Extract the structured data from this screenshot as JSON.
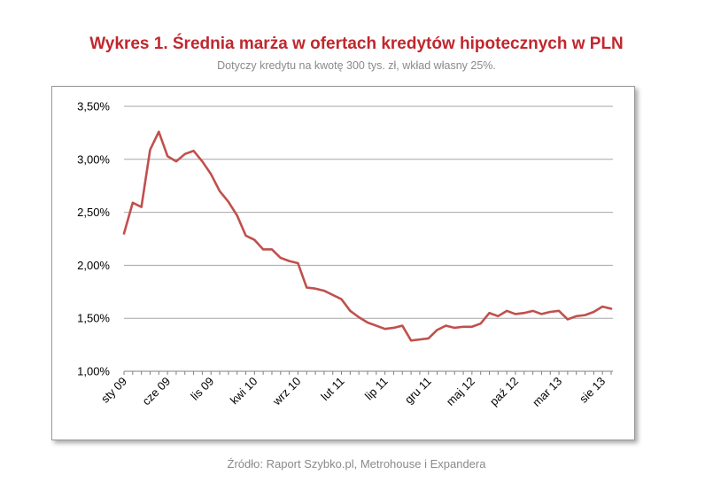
{
  "header": {
    "title": "Wykres 1. Średnia marża w ofertach kredytów hipotecznych w PLN",
    "subtitle": "Dotyczy kredytu na kwotę 300 tys. zł, wkład własny 25%."
  },
  "footer": {
    "source": "Źródło: Raport Szybko.pl, Metrohouse i Expandera"
  },
  "colors": {
    "line": "#c0504d",
    "grid": "#a6a6a6"
  },
  "chart_data": {
    "type": "line",
    "title": "Wykres 1. Średnia marża w ofertach kredytów hipotecznych w PLN",
    "subtitle": "Dotyczy kredytu na kwotę 300 tys. zł, wkład własny 25%.",
    "xlabel": "",
    "ylabel": "",
    "ylim": [
      1.0,
      3.5
    ],
    "yticks": [
      1.0,
      1.5,
      2.0,
      2.5,
      3.0,
      3.5
    ],
    "ytick_labels": [
      "1,00%",
      "1,50%",
      "2,00%",
      "2,50%",
      "3,00%",
      "3,50%"
    ],
    "x_tick_labels": [
      {
        "label": "sty 09",
        "index": 0
      },
      {
        "label": "cze 09",
        "index": 5
      },
      {
        "label": "lis 09",
        "index": 10
      },
      {
        "label": "kwi 10",
        "index": 15
      },
      {
        "label": "wrz 10",
        "index": 20
      },
      {
        "label": "lut 11",
        "index": 25
      },
      {
        "label": "lip 11",
        "index": 30
      },
      {
        "label": "gru 11",
        "index": 35
      },
      {
        "label": "maj 12",
        "index": 40
      },
      {
        "label": "paź 12",
        "index": 45
      },
      {
        "label": "mar 13",
        "index": 50
      },
      {
        "label": "sie 13",
        "index": 55
      }
    ],
    "grid": true,
    "series": [
      {
        "values": [
          2.3,
          2.59,
          2.55,
          3.09,
          3.26,
          3.03,
          2.98,
          3.05,
          3.08,
          2.98,
          2.86,
          2.7,
          2.6,
          2.47,
          2.28,
          2.24,
          2.15,
          2.15,
          2.07,
          2.04,
          2.02,
          1.79,
          1.78,
          1.76,
          1.72,
          1.68,
          1.57,
          1.51,
          1.46,
          1.43,
          1.4,
          1.41,
          1.43,
          1.29,
          1.3,
          1.31,
          1.39,
          1.43,
          1.41,
          1.42,
          1.42,
          1.45,
          1.55,
          1.52,
          1.57,
          1.54,
          1.55,
          1.57,
          1.54,
          1.56,
          1.57,
          1.49,
          1.52,
          1.53,
          1.56,
          1.61,
          1.59
        ]
      }
    ]
  }
}
